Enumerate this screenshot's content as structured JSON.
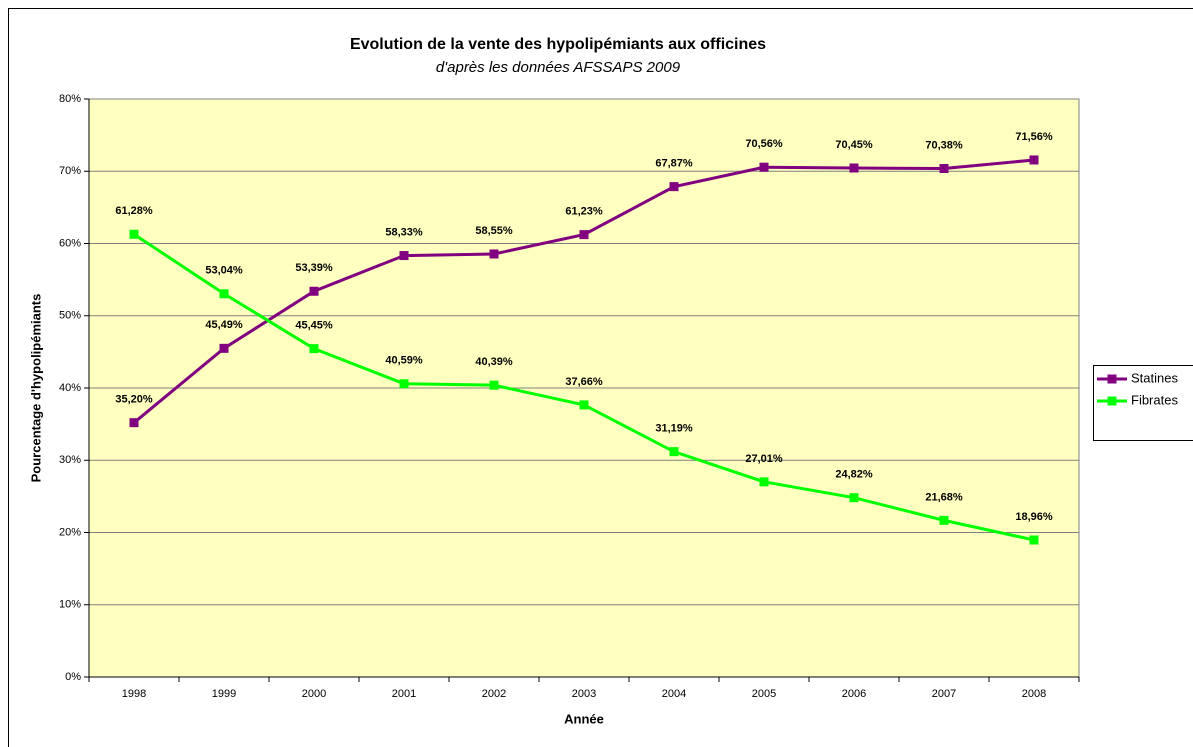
{
  "chart_data": {
    "type": "line",
    "title": "Evolution de la vente des hypolipémiants aux officines",
    "subtitle": "d'après les données AFSSAPS 2009",
    "x_label": "Année",
    "y_label": "Pourcentage d'hypolipémiants",
    "categories": [
      "1998",
      "1999",
      "2000",
      "2001",
      "2002",
      "2003",
      "2004",
      "2005",
      "2006",
      "2007",
      "2008"
    ],
    "series": [
      {
        "name": "Statines",
        "color": "#800080",
        "values": [
          35.2,
          45.49,
          53.39,
          58.33,
          58.55,
          61.23,
          67.87,
          70.56,
          70.45,
          70.38,
          71.56
        ],
        "value_labels": [
          "35,20%",
          "45,49%",
          "53,39%",
          "58,33%",
          "58,55%",
          "61,23%",
          "67,87%",
          "70,56%",
          "70,45%",
          "70,38%",
          "71,56%"
        ]
      },
      {
        "name": "Fibrates",
        "color": "#00ff00",
        "values": [
          61.28,
          53.04,
          45.45,
          40.59,
          40.39,
          37.66,
          31.19,
          27.01,
          24.82,
          21.68,
          18.96
        ],
        "value_labels": [
          "61,28%",
          "53,04%",
          "45,45%",
          "40,59%",
          "40,39%",
          "37,66%",
          "31,19%",
          "27,01%",
          "24,82%",
          "21,68%",
          "18,96%"
        ]
      }
    ],
    "ylim": [
      0,
      80
    ],
    "yticks": [
      {
        "value": 0,
        "label": "0%"
      },
      {
        "value": 10,
        "label": "10%"
      },
      {
        "value": 20,
        "label": "20%"
      },
      {
        "value": 30,
        "label": "30%"
      },
      {
        "value": 40,
        "label": "40%"
      },
      {
        "value": 50,
        "label": "50%"
      },
      {
        "value": 60,
        "label": "60%"
      },
      {
        "value": 70,
        "label": "70%"
      },
      {
        "value": 80,
        "label": "80%"
      }
    ],
    "grid": true,
    "legend": "right",
    "plot_background": "#ffffc0"
  }
}
